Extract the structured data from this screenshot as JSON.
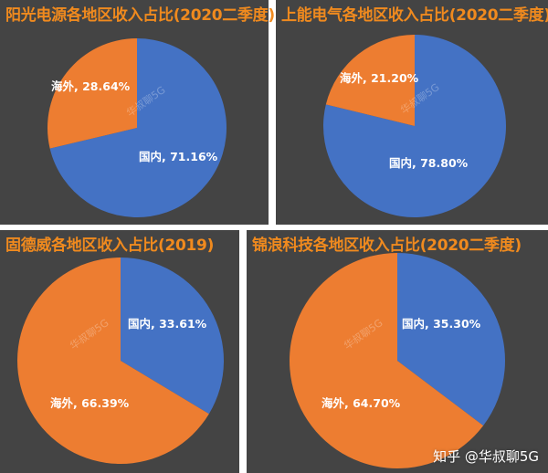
{
  "colors": {
    "domestic": "#4472c4",
    "overseas": "#ed7d31",
    "title": "#f08a1e",
    "panel": "#444444"
  },
  "chart_data": [
    {
      "type": "pie",
      "title": "阳光电源各地区收入占比(2020二季度)",
      "slices": [
        {
          "name": "国内",
          "value": 71.16,
          "label": "国内, 71.16%"
        },
        {
          "name": "海外",
          "value": 28.64,
          "label": "海外, 28.64%"
        }
      ]
    },
    {
      "type": "pie",
      "title": "上能电气各地区收入占比(2020二季度)",
      "slices": [
        {
          "name": "国内",
          "value": 78.8,
          "label": "国内, 78.80%"
        },
        {
          "name": "海外",
          "value": 21.2,
          "label": "海外, 21.20%"
        }
      ]
    },
    {
      "type": "pie",
      "title": "固德威各地区收入占比(2019)",
      "slices": [
        {
          "name": "国内",
          "value": 33.61,
          "label": "国内, 33.61%"
        },
        {
          "name": "海外",
          "value": 66.39,
          "label": "海外, 66.39%"
        }
      ]
    },
    {
      "type": "pie",
      "title": "锦浪科技各地区收入占比(2020二季度)",
      "slices": [
        {
          "name": "国内",
          "value": 35.3,
          "label": "国内, 35.30%"
        },
        {
          "name": "海外",
          "value": 64.7,
          "label": "海外, 64.70%"
        }
      ]
    }
  ],
  "watermark": "华叔聊5G",
  "footer": "知乎 @华叔聊5G"
}
